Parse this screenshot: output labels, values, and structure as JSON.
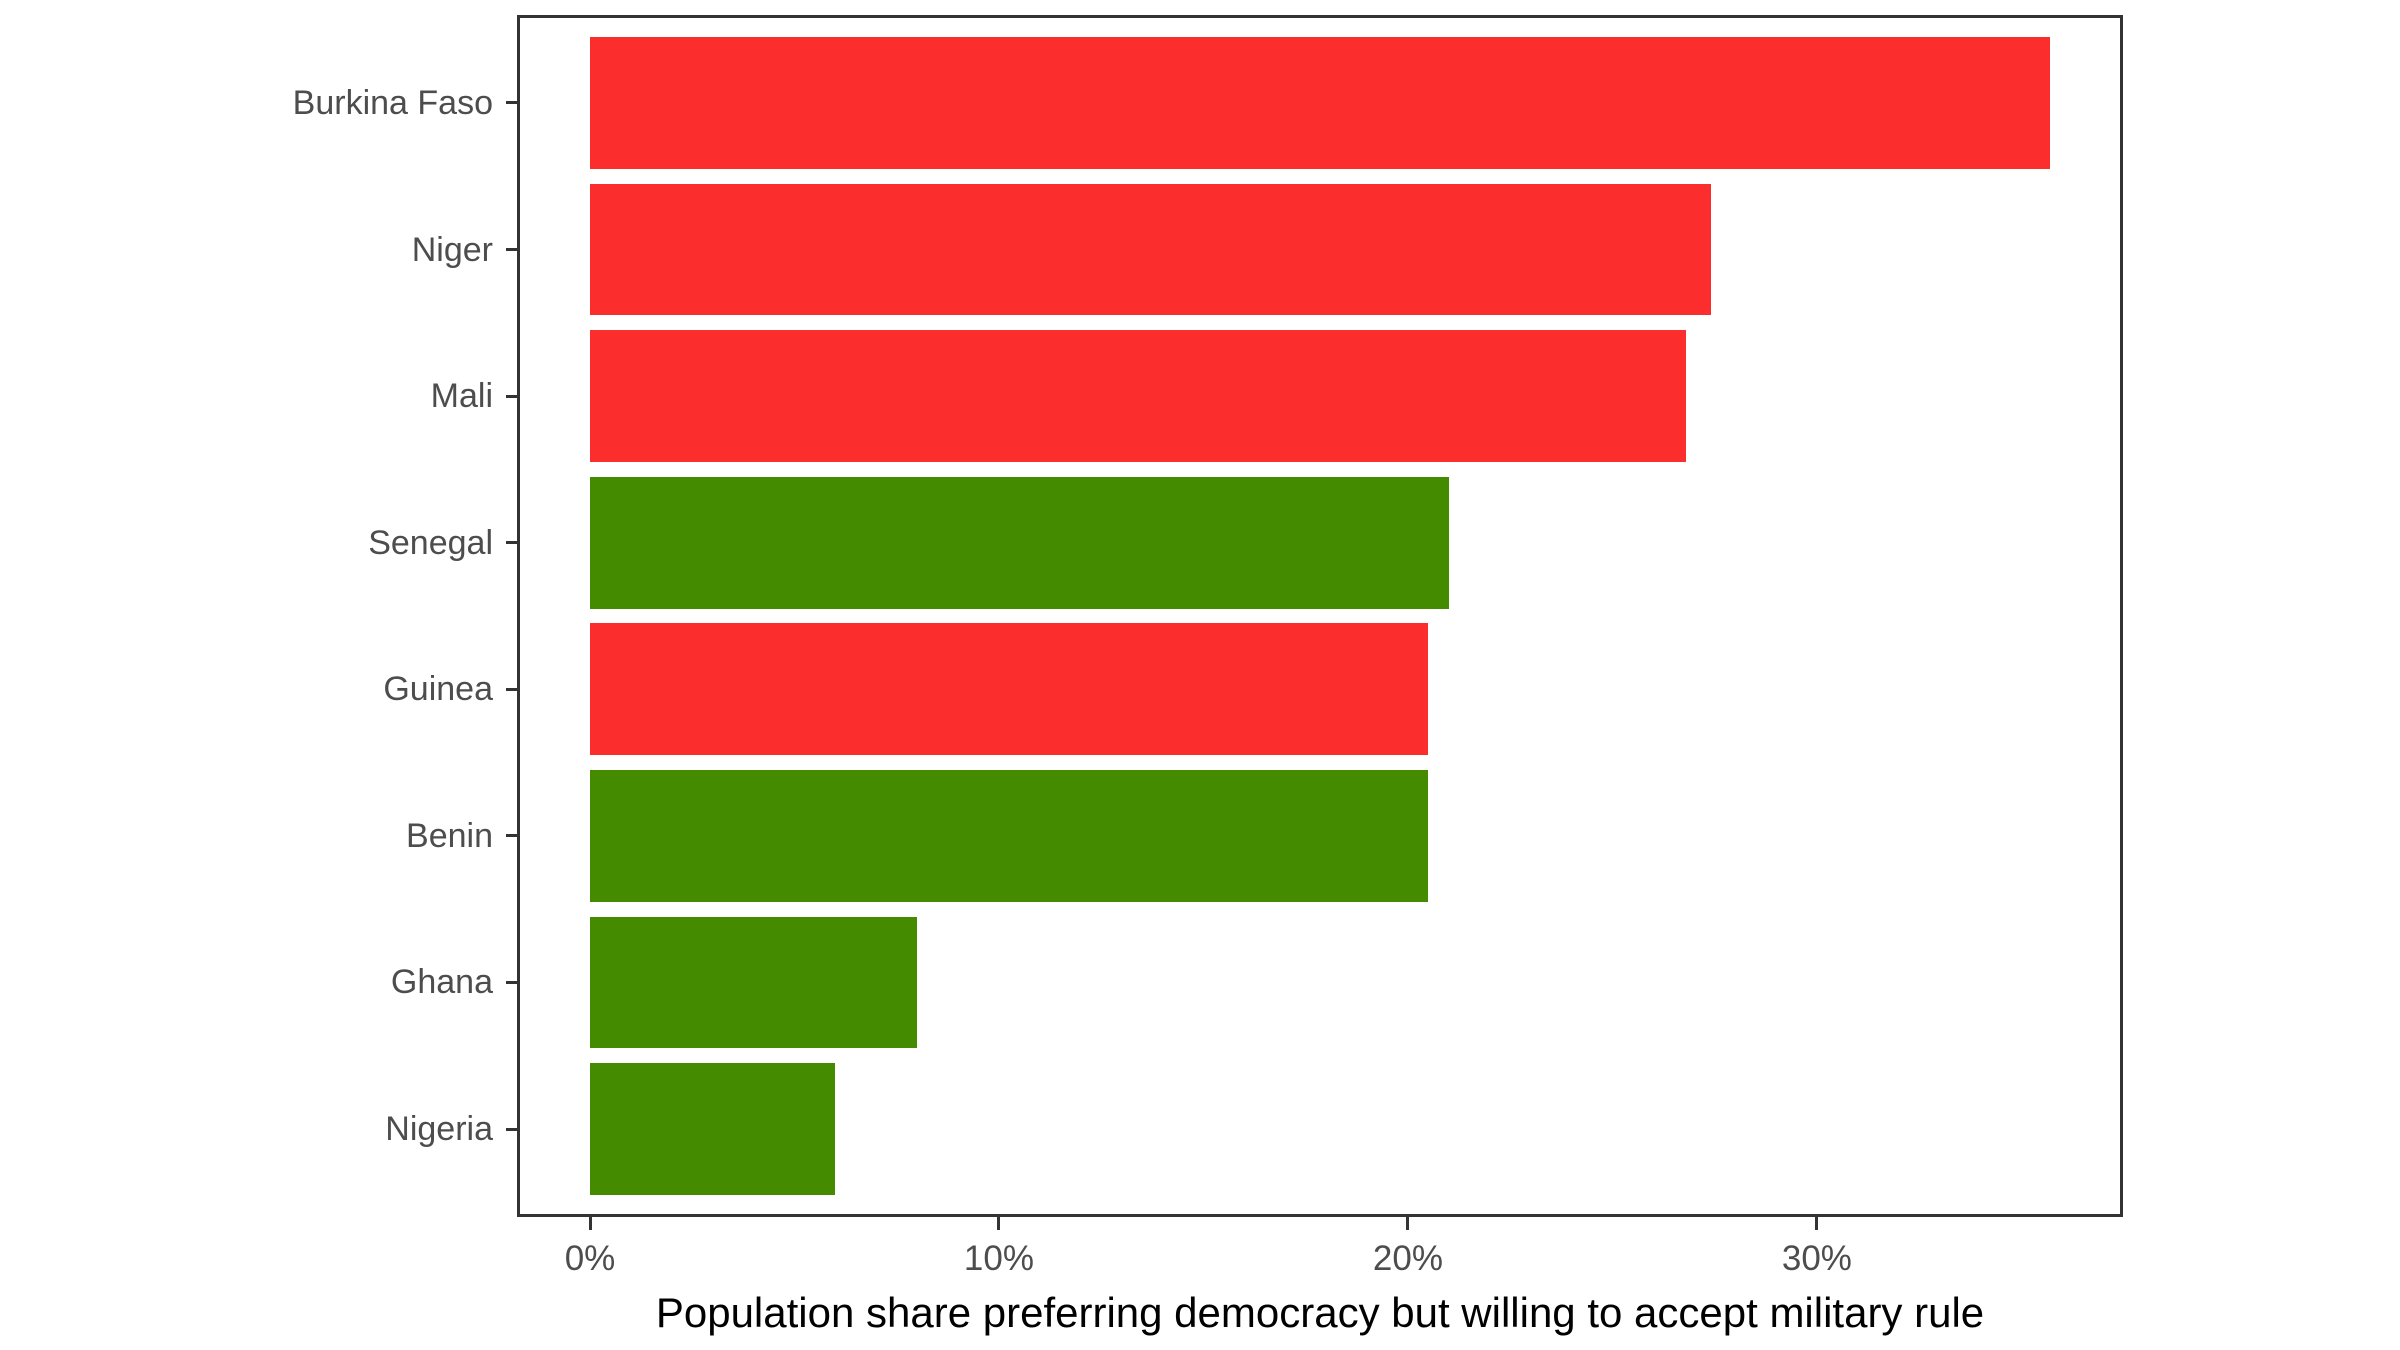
{
  "chart_data": {
    "type": "bar",
    "orientation": "horizontal",
    "title": "",
    "xlabel": "Population share preferring democracy but willing to accept military rule",
    "ylabel": "",
    "categories": [
      "Burkina Faso",
      "Niger",
      "Mali",
      "Senegal",
      "Guinea",
      "Benin",
      "Ghana",
      "Nigeria"
    ],
    "values": [
      35.7,
      27.4,
      26.8,
      21.0,
      20.5,
      20.5,
      8.0,
      6.0
    ],
    "value_unit": "percent",
    "bar_color_keys": [
      "red",
      "red",
      "red",
      "green",
      "red",
      "green",
      "green",
      "green"
    ],
    "palette": {
      "red": "#FC2D2D",
      "green": "#458B00"
    },
    "x_tick_values": [
      0,
      10,
      20,
      30
    ],
    "x_tick_labels": [
      "0%",
      "10%",
      "20%",
      "30%"
    ],
    "xlim": [
      -1.785,
      37.485
    ],
    "grid": false,
    "legend": false,
    "panel_border_color": "#333333",
    "axis_text_color": "#4D4D4D",
    "axis_title_color": "#000000",
    "background_color": "#FFFFFF"
  }
}
